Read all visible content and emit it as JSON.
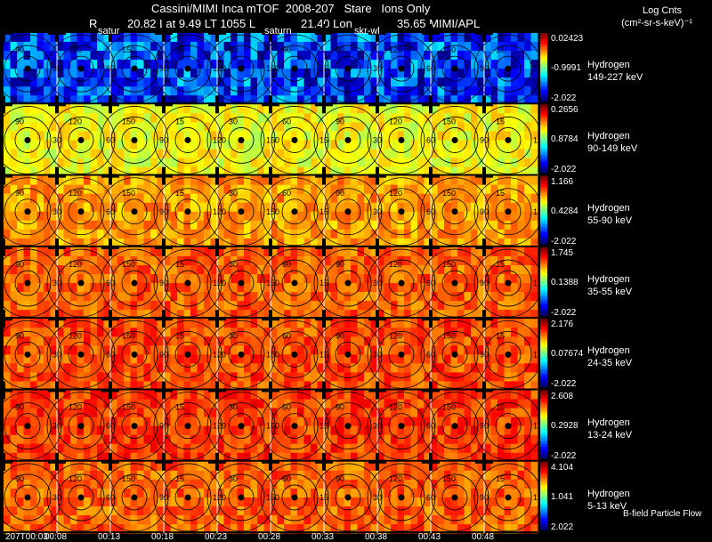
{
  "header": {
    "title": "Cassini/MIMI Inca mTOF  2008-207   Stare   Ions Only",
    "r_label": "R",
    "lat_text": "20.82 Lat 9.49 LT 1055 L",
    "lon_text": "21.40 Lon",
    "inst_text": "35.65  MIMI/APL",
    "units_line1": "Log Cnts",
    "units_line2": "(cm²-sr-s-keV)⁻¹"
  },
  "strip_labels": [
    "satur",
    "saturn",
    "skr-wl"
  ],
  "footer": {
    "flow_label": "B-field Particle Flow"
  },
  "chart_data": {
    "type": "heatmap",
    "title": "Cassini/MIMI Inca mTOF 2008-207 Stare Ions Only",
    "time_labels": [
      "207T00:03",
      "00:08",
      "00:13",
      "00:18",
      "00:23",
      "00:28",
      "00:33",
      "00:38",
      "00:43",
      "00:48"
    ],
    "pitch_angle_contours": [
      15,
      30,
      60,
      90,
      120,
      150
    ],
    "rows": [
      {
        "species": "Hydrogen",
        "energy": "149-227 keV",
        "cb_max": "0.02423",
        "cb_mid": "-0.9991",
        "cb_min": "-2.022",
        "level": 0.18
      },
      {
        "species": "Hydrogen",
        "energy": "90-149 keV",
        "cb_max": "0.2656",
        "cb_mid": "0.8784",
        "cb_min": "-2.022",
        "level": 0.62
      },
      {
        "species": "Hydrogen",
        "energy": "55-90 keV",
        "cb_max": "1.166",
        "cb_mid": "0.4284",
        "cb_min": "-2.022",
        "level": 0.72
      },
      {
        "species": "Hydrogen",
        "energy": "35-55 keV",
        "cb_max": "1.745",
        "cb_mid": "0.1388",
        "cb_min": "-2.022",
        "level": 0.78
      },
      {
        "species": "Hydrogen",
        "energy": "24-35 keV",
        "cb_max": "2.176",
        "cb_mid": "0.07674",
        "cb_min": "-2.022",
        "level": 0.8
      },
      {
        "species": "Hydrogen",
        "energy": "13-24 keV",
        "cb_max": "2.608",
        "cb_mid": "0.2928",
        "cb_min": "-2.022",
        "level": 0.82
      },
      {
        "species": "Hydrogen",
        "energy": "5-13 keV",
        "cb_max": "4.104",
        "cb_mid": "1.041",
        "cb_min": "2.022",
        "level": 0.78
      }
    ]
  }
}
